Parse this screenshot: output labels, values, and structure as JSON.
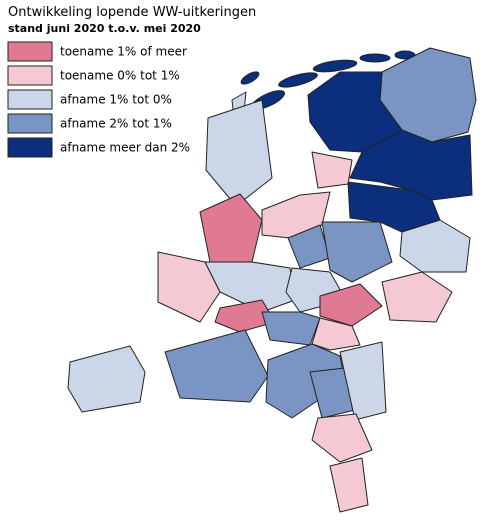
{
  "title": "Ontwikkeling lopende WW-uitkeringen",
  "subtitle": "stand juni 2020 t.o.v. mei 2020",
  "legend": [
    {
      "label": "toename 1% of meer",
      "color": "#e07a93"
    },
    {
      "label": "toename 0% tot 1%",
      "color": "#f4c9d4"
    },
    {
      "label": "afname 1% tot 0%",
      "color": "#cbd6e8"
    },
    {
      "label": "afname 2% tot 1%",
      "color": "#7a95c4"
    },
    {
      "label": "afname meer dan 2%",
      "color": "#0b2e7d"
    }
  ]
}
